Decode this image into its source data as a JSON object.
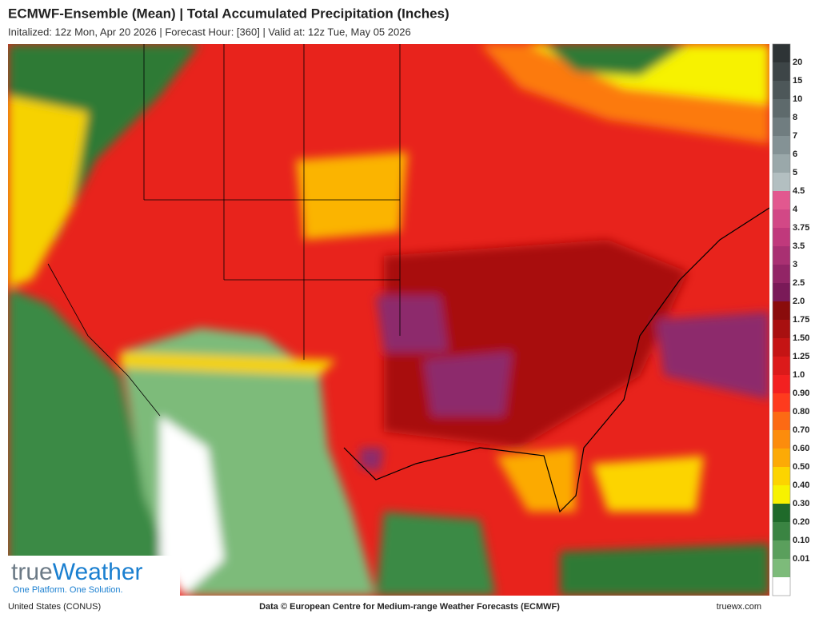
{
  "header": {
    "title": "ECMWF-Ensemble (Mean)  |  Total Accumulated Precipitation (Inches)",
    "subtitle": "Initalized: 12z Mon, Apr 20 2026  |  Forecast Hour: [360]  |  Valid at: 12z Tue, May 05 2026"
  },
  "legend": {
    "colors": [
      "#2e3436",
      "#3d4547",
      "#4d5759",
      "#5e6a6c",
      "#707d80",
      "#849295",
      "#9aa8aa",
      "#b3bfc1",
      "#e2588f",
      "#d24886",
      "#c0397c",
      "#a93072",
      "#922566",
      "#7a1a58",
      "#8a0c0c",
      "#a81010",
      "#c51414",
      "#dc1a1a",
      "#f32020",
      "#fe3b1e",
      "#fc6a14",
      "#fc8c0c",
      "#fcaa06",
      "#fcd400",
      "#f7f200",
      "#1f6a2a",
      "#3a8442",
      "#5a9f5c",
      "#7dbb7a",
      "#ffffff"
    ],
    "labels": [
      "20",
      "15",
      "10",
      "8",
      "7",
      "6",
      "5",
      "4.5",
      "4",
      "3.75",
      "3.5",
      "3",
      "2.5",
      "2.0",
      "1.75",
      "1.50",
      "1.25",
      "1.0",
      "0.90",
      "0.80",
      "0.70",
      "0.60",
      "0.50",
      "0.40",
      "0.30",
      "0.20",
      "0.10",
      "0.01"
    ]
  },
  "logo": {
    "part1": "true",
    "part2": "Weather",
    "tagline": "One Platform. One Solution."
  },
  "footer": {
    "region": "United States (CONUS)",
    "source": "Data © European Centre for Medium-range Weather Forecasts (ECMWF)",
    "site": "truewx.com"
  }
}
